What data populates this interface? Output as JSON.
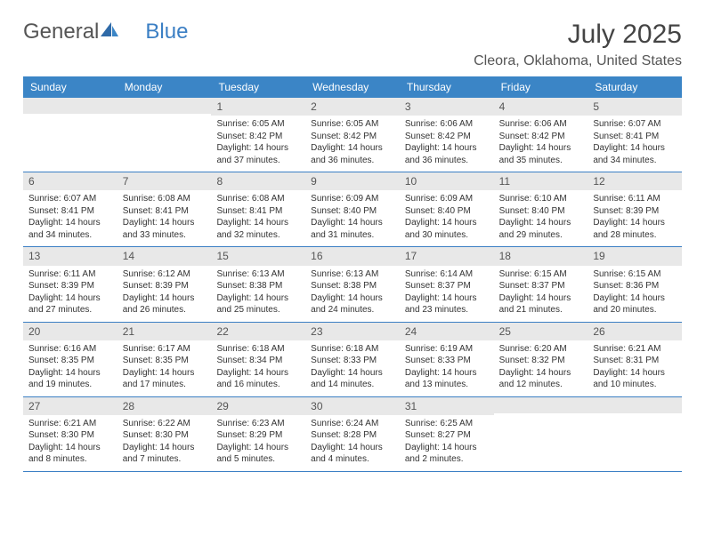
{
  "logo": {
    "part1": "General",
    "part2": "Blue"
  },
  "title": "July 2025",
  "location": "Cleora, Oklahoma, United States",
  "day_names": [
    "Sunday",
    "Monday",
    "Tuesday",
    "Wednesday",
    "Thursday",
    "Friday",
    "Saturday"
  ],
  "colors": {
    "header_bg": "#3b85c6",
    "accent": "#3b7fc4",
    "num_bg": "#e8e8e8",
    "text": "#333333"
  },
  "weeks": [
    [
      {
        "num": "",
        "sunrise": "",
        "sunset": "",
        "daylight": ""
      },
      {
        "num": "",
        "sunrise": "",
        "sunset": "",
        "daylight": ""
      },
      {
        "num": "1",
        "sunrise": "Sunrise: 6:05 AM",
        "sunset": "Sunset: 8:42 PM",
        "daylight": "Daylight: 14 hours and 37 minutes."
      },
      {
        "num": "2",
        "sunrise": "Sunrise: 6:05 AM",
        "sunset": "Sunset: 8:42 PM",
        "daylight": "Daylight: 14 hours and 36 minutes."
      },
      {
        "num": "3",
        "sunrise": "Sunrise: 6:06 AM",
        "sunset": "Sunset: 8:42 PM",
        "daylight": "Daylight: 14 hours and 36 minutes."
      },
      {
        "num": "4",
        "sunrise": "Sunrise: 6:06 AM",
        "sunset": "Sunset: 8:42 PM",
        "daylight": "Daylight: 14 hours and 35 minutes."
      },
      {
        "num": "5",
        "sunrise": "Sunrise: 6:07 AM",
        "sunset": "Sunset: 8:41 PM",
        "daylight": "Daylight: 14 hours and 34 minutes."
      }
    ],
    [
      {
        "num": "6",
        "sunrise": "Sunrise: 6:07 AM",
        "sunset": "Sunset: 8:41 PM",
        "daylight": "Daylight: 14 hours and 34 minutes."
      },
      {
        "num": "7",
        "sunrise": "Sunrise: 6:08 AM",
        "sunset": "Sunset: 8:41 PM",
        "daylight": "Daylight: 14 hours and 33 minutes."
      },
      {
        "num": "8",
        "sunrise": "Sunrise: 6:08 AM",
        "sunset": "Sunset: 8:41 PM",
        "daylight": "Daylight: 14 hours and 32 minutes."
      },
      {
        "num": "9",
        "sunrise": "Sunrise: 6:09 AM",
        "sunset": "Sunset: 8:40 PM",
        "daylight": "Daylight: 14 hours and 31 minutes."
      },
      {
        "num": "10",
        "sunrise": "Sunrise: 6:09 AM",
        "sunset": "Sunset: 8:40 PM",
        "daylight": "Daylight: 14 hours and 30 minutes."
      },
      {
        "num": "11",
        "sunrise": "Sunrise: 6:10 AM",
        "sunset": "Sunset: 8:40 PM",
        "daylight": "Daylight: 14 hours and 29 minutes."
      },
      {
        "num": "12",
        "sunrise": "Sunrise: 6:11 AM",
        "sunset": "Sunset: 8:39 PM",
        "daylight": "Daylight: 14 hours and 28 minutes."
      }
    ],
    [
      {
        "num": "13",
        "sunrise": "Sunrise: 6:11 AM",
        "sunset": "Sunset: 8:39 PM",
        "daylight": "Daylight: 14 hours and 27 minutes."
      },
      {
        "num": "14",
        "sunrise": "Sunrise: 6:12 AM",
        "sunset": "Sunset: 8:39 PM",
        "daylight": "Daylight: 14 hours and 26 minutes."
      },
      {
        "num": "15",
        "sunrise": "Sunrise: 6:13 AM",
        "sunset": "Sunset: 8:38 PM",
        "daylight": "Daylight: 14 hours and 25 minutes."
      },
      {
        "num": "16",
        "sunrise": "Sunrise: 6:13 AM",
        "sunset": "Sunset: 8:38 PM",
        "daylight": "Daylight: 14 hours and 24 minutes."
      },
      {
        "num": "17",
        "sunrise": "Sunrise: 6:14 AM",
        "sunset": "Sunset: 8:37 PM",
        "daylight": "Daylight: 14 hours and 23 minutes."
      },
      {
        "num": "18",
        "sunrise": "Sunrise: 6:15 AM",
        "sunset": "Sunset: 8:37 PM",
        "daylight": "Daylight: 14 hours and 21 minutes."
      },
      {
        "num": "19",
        "sunrise": "Sunrise: 6:15 AM",
        "sunset": "Sunset: 8:36 PM",
        "daylight": "Daylight: 14 hours and 20 minutes."
      }
    ],
    [
      {
        "num": "20",
        "sunrise": "Sunrise: 6:16 AM",
        "sunset": "Sunset: 8:35 PM",
        "daylight": "Daylight: 14 hours and 19 minutes."
      },
      {
        "num": "21",
        "sunrise": "Sunrise: 6:17 AM",
        "sunset": "Sunset: 8:35 PM",
        "daylight": "Daylight: 14 hours and 17 minutes."
      },
      {
        "num": "22",
        "sunrise": "Sunrise: 6:18 AM",
        "sunset": "Sunset: 8:34 PM",
        "daylight": "Daylight: 14 hours and 16 minutes."
      },
      {
        "num": "23",
        "sunrise": "Sunrise: 6:18 AM",
        "sunset": "Sunset: 8:33 PM",
        "daylight": "Daylight: 14 hours and 14 minutes."
      },
      {
        "num": "24",
        "sunrise": "Sunrise: 6:19 AM",
        "sunset": "Sunset: 8:33 PM",
        "daylight": "Daylight: 14 hours and 13 minutes."
      },
      {
        "num": "25",
        "sunrise": "Sunrise: 6:20 AM",
        "sunset": "Sunset: 8:32 PM",
        "daylight": "Daylight: 14 hours and 12 minutes."
      },
      {
        "num": "26",
        "sunrise": "Sunrise: 6:21 AM",
        "sunset": "Sunset: 8:31 PM",
        "daylight": "Daylight: 14 hours and 10 minutes."
      }
    ],
    [
      {
        "num": "27",
        "sunrise": "Sunrise: 6:21 AM",
        "sunset": "Sunset: 8:30 PM",
        "daylight": "Daylight: 14 hours and 8 minutes."
      },
      {
        "num": "28",
        "sunrise": "Sunrise: 6:22 AM",
        "sunset": "Sunset: 8:30 PM",
        "daylight": "Daylight: 14 hours and 7 minutes."
      },
      {
        "num": "29",
        "sunrise": "Sunrise: 6:23 AM",
        "sunset": "Sunset: 8:29 PM",
        "daylight": "Daylight: 14 hours and 5 minutes."
      },
      {
        "num": "30",
        "sunrise": "Sunrise: 6:24 AM",
        "sunset": "Sunset: 8:28 PM",
        "daylight": "Daylight: 14 hours and 4 minutes."
      },
      {
        "num": "31",
        "sunrise": "Sunrise: 6:25 AM",
        "sunset": "Sunset: 8:27 PM",
        "daylight": "Daylight: 14 hours and 2 minutes."
      },
      {
        "num": "",
        "sunrise": "",
        "sunset": "",
        "daylight": ""
      },
      {
        "num": "",
        "sunrise": "",
        "sunset": "",
        "daylight": ""
      }
    ]
  ]
}
